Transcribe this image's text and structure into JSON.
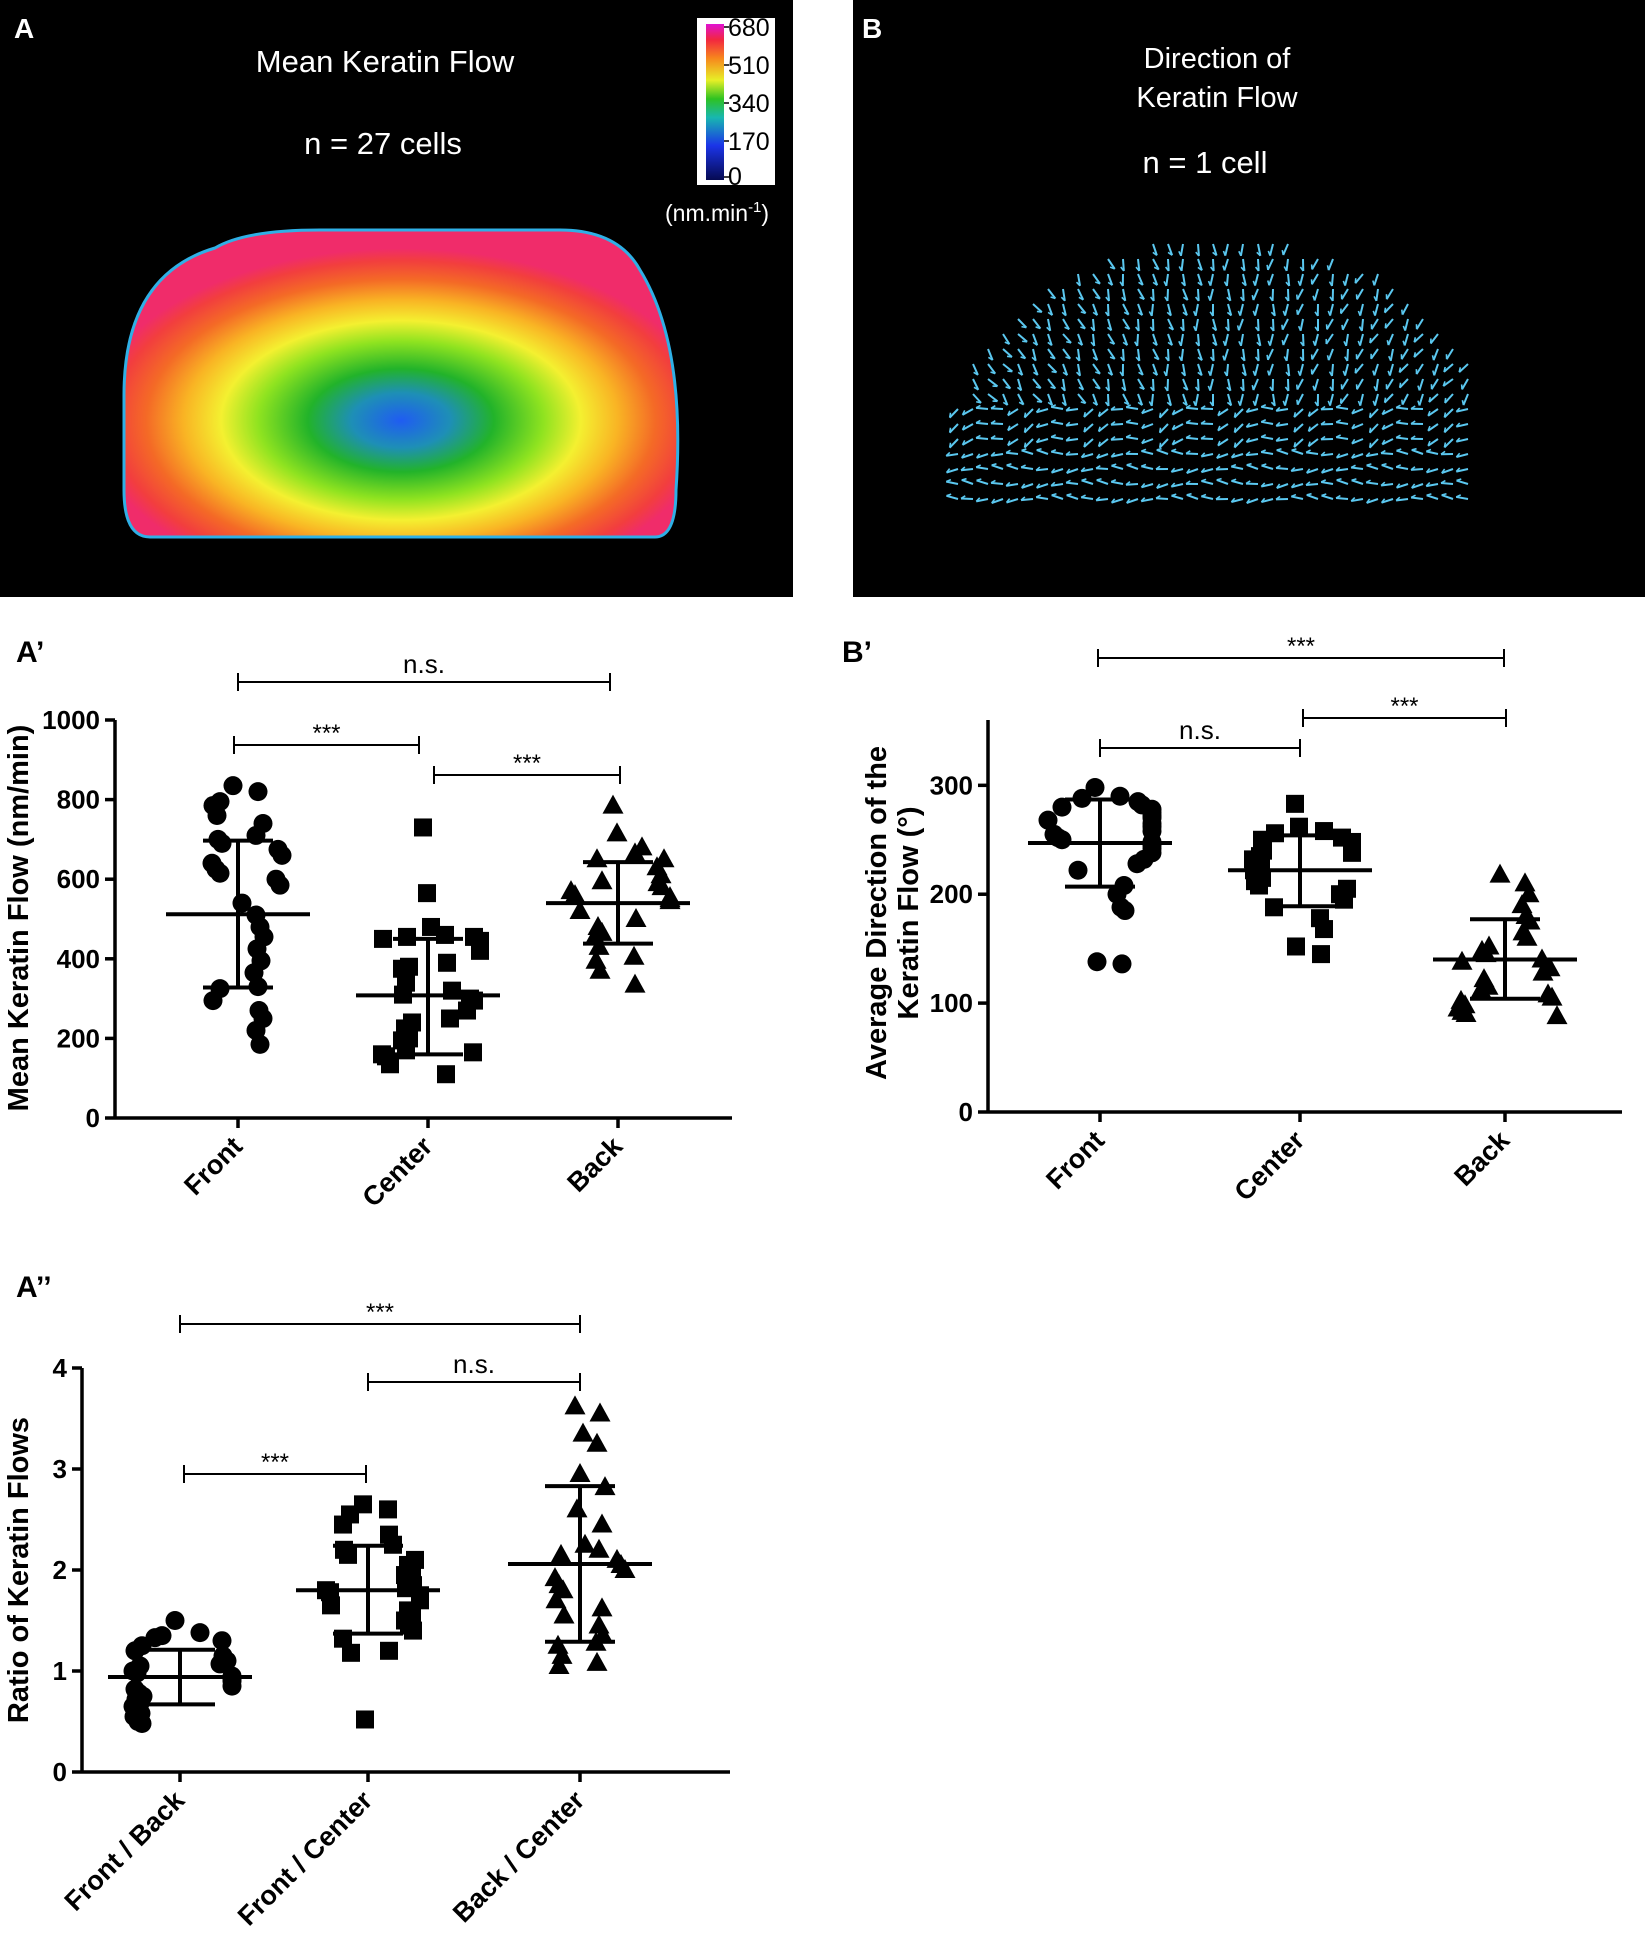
{
  "figure": {
    "panel_A": {
      "letter": "A",
      "title": "Mean Keratin Flow",
      "n_label": "n = 27 cells",
      "colorbar": {
        "ticks": [
          "680",
          "510",
          "340",
          "170",
          "0"
        ],
        "unit_label": "(nm.min",
        "unit_sup": "-1",
        "unit_close": ")"
      }
    },
    "panel_B": {
      "letter": "B",
      "title_line1": "Direction of",
      "title_line2": "Keratin Flow",
      "n_label": "n = 1 cell"
    },
    "colors": {
      "background": "#000000",
      "arrow": "#5bc8f0",
      "marker": "#000000",
      "axis": "#000000"
    }
  },
  "chart_data": [
    {
      "id": "A_prime",
      "panel": "A’",
      "type": "scatter",
      "ylabel": "Mean Keratin Flow (nm/min)",
      "ylim": [
        0,
        1000
      ],
      "yticks": [
        0,
        200,
        400,
        600,
        800,
        1000
      ],
      "categories": [
        "Front",
        "Center",
        "Back"
      ],
      "markers": [
        "circle",
        "square",
        "triangle"
      ],
      "series": [
        {
          "name": "Front",
          "mean": 512,
          "sd_low": 328,
          "sd_high": 697,
          "values": [
            835,
            820,
            795,
            785,
            760,
            740,
            710,
            700,
            690,
            675,
            660,
            640,
            625,
            615,
            600,
            585,
            540,
            510,
            480,
            455,
            425,
            395,
            365,
            330,
            325,
            295,
            270,
            250,
            220,
            185
          ]
        },
        {
          "name": "Center",
          "mean": 308,
          "sd_low": 160,
          "sd_high": 450,
          "values": [
            730,
            565,
            480,
            460,
            455,
            455,
            450,
            445,
            420,
            390,
            380,
            375,
            340,
            320,
            310,
            300,
            295,
            270,
            250,
            240,
            225,
            200,
            195,
            170,
            165,
            160,
            155,
            135,
            110
          ]
        },
        {
          "name": "Back",
          "mean": 540,
          "sd_low": 438,
          "sd_high": 643,
          "values": [
            785,
            715,
            680,
            665,
            650,
            650,
            630,
            610,
            595,
            590,
            580,
            570,
            560,
            555,
            550,
            545,
            520,
            500,
            480,
            465,
            455,
            430,
            405,
            395,
            370,
            335
          ]
        }
      ],
      "significance": [
        {
          "pair": [
            "Front",
            "Center"
          ],
          "label": "***"
        },
        {
          "pair": [
            "Center",
            "Back"
          ],
          "label": "***"
        },
        {
          "pair": [
            "Front",
            "Back"
          ],
          "label": "n.s."
        }
      ]
    },
    {
      "id": "B_prime",
      "panel": "B’",
      "type": "scatter",
      "ylabel_line1": "Average Direction of the",
      "ylabel_line2": "Keratin Flow (°)",
      "ylim": [
        0,
        360
      ],
      "yticks": [
        0,
        100,
        200,
        300
      ],
      "categories": [
        "Front",
        "Center",
        "Back"
      ],
      "markers": [
        "circle",
        "square",
        "triangle"
      ],
      "series": [
        {
          "name": "Front",
          "mean": 247,
          "sd_low": 207,
          "sd_high": 287,
          "values": [
            298,
            290,
            288,
            285,
            282,
            280,
            278,
            275,
            272,
            270,
            268,
            265,
            262,
            258,
            255,
            252,
            250,
            248,
            245,
            242,
            238,
            232,
            228,
            222,
            208,
            200,
            188,
            185,
            138,
            136
          ]
        },
        {
          "name": "Center",
          "mean": 222,
          "sd_low": 189,
          "sd_high": 254,
          "values": [
            283,
            262,
            258,
            256,
            252,
            250,
            248,
            245,
            240,
            238,
            235,
            232,
            228,
            225,
            222,
            220,
            215,
            212,
            208,
            205,
            200,
            195,
            188,
            178,
            168,
            152,
            145
          ]
        },
        {
          "name": "Back",
          "mean": 140,
          "sd_low": 104,
          "sd_high": 177,
          "values": [
            218,
            210,
            200,
            190,
            180,
            175,
            165,
            160,
            152,
            148,
            145,
            140,
            138,
            132,
            128,
            122,
            115,
            112,
            108,
            105,
            102,
            98,
            95,
            92,
            90,
            88
          ]
        }
      ],
      "significance": [
        {
          "pair": [
            "Front",
            "Center"
          ],
          "label": "n.s."
        },
        {
          "pair": [
            "Center",
            "Back"
          ],
          "label": "***"
        },
        {
          "pair": [
            "Front",
            "Back"
          ],
          "label": "***"
        }
      ]
    },
    {
      "id": "A_double_prime",
      "panel": "A’’",
      "type": "scatter",
      "ylabel": "Ratio of Keratin Flows",
      "ylim": [
        0,
        4
      ],
      "yticks": [
        0,
        1,
        2,
        3,
        4
      ],
      "categories": [
        "Front / Back",
        "Front / Center",
        "Back / Center"
      ],
      "markers": [
        "circle",
        "square",
        "triangle"
      ],
      "series": [
        {
          "name": "Front / Back",
          "mean": 0.94,
          "sd_low": 0.67,
          "sd_high": 1.21,
          "values": [
            1.5,
            1.38,
            1.35,
            1.33,
            1.3,
            1.25,
            1.2,
            1.15,
            1.1,
            1.07,
            1.05,
            1.0,
            0.98,
            0.95,
            0.92,
            0.9,
            0.85,
            0.82,
            0.78,
            0.75,
            0.72,
            0.68,
            0.65,
            0.62,
            0.58,
            0.55,
            0.5,
            0.48
          ]
        },
        {
          "name": "Front / Center",
          "mean": 1.8,
          "sd_low": 1.37,
          "sd_high": 2.24,
          "values": [
            2.65,
            2.6,
            2.55,
            2.45,
            2.35,
            2.25,
            2.2,
            2.15,
            2.1,
            2.05,
            2.0,
            1.95,
            1.9,
            1.85,
            1.82,
            1.8,
            1.78,
            1.75,
            1.7,
            1.65,
            1.6,
            1.55,
            1.5,
            1.45,
            1.4,
            1.32,
            1.2,
            1.18,
            0.52
          ]
        },
        {
          "name": "Back / Center",
          "mean": 2.06,
          "sd_low": 1.29,
          "sd_high": 2.83,
          "values": [
            3.62,
            3.55,
            3.35,
            3.25,
            2.95,
            2.82,
            2.6,
            2.45,
            2.25,
            2.2,
            2.15,
            2.1,
            2.05,
            2.0,
            1.92,
            1.85,
            1.8,
            1.7,
            1.62,
            1.55,
            1.45,
            1.35,
            1.28,
            1.25,
            1.15,
            1.08,
            1.05
          ]
        }
      ],
      "significance": [
        {
          "pair": [
            "Front / Back",
            "Front / Center"
          ],
          "label": "***"
        },
        {
          "pair": [
            "Front / Center",
            "Back / Center"
          ],
          "label": "n.s."
        },
        {
          "pair": [
            "Front / Back",
            "Back / Center"
          ],
          "label": "***"
        }
      ]
    }
  ]
}
